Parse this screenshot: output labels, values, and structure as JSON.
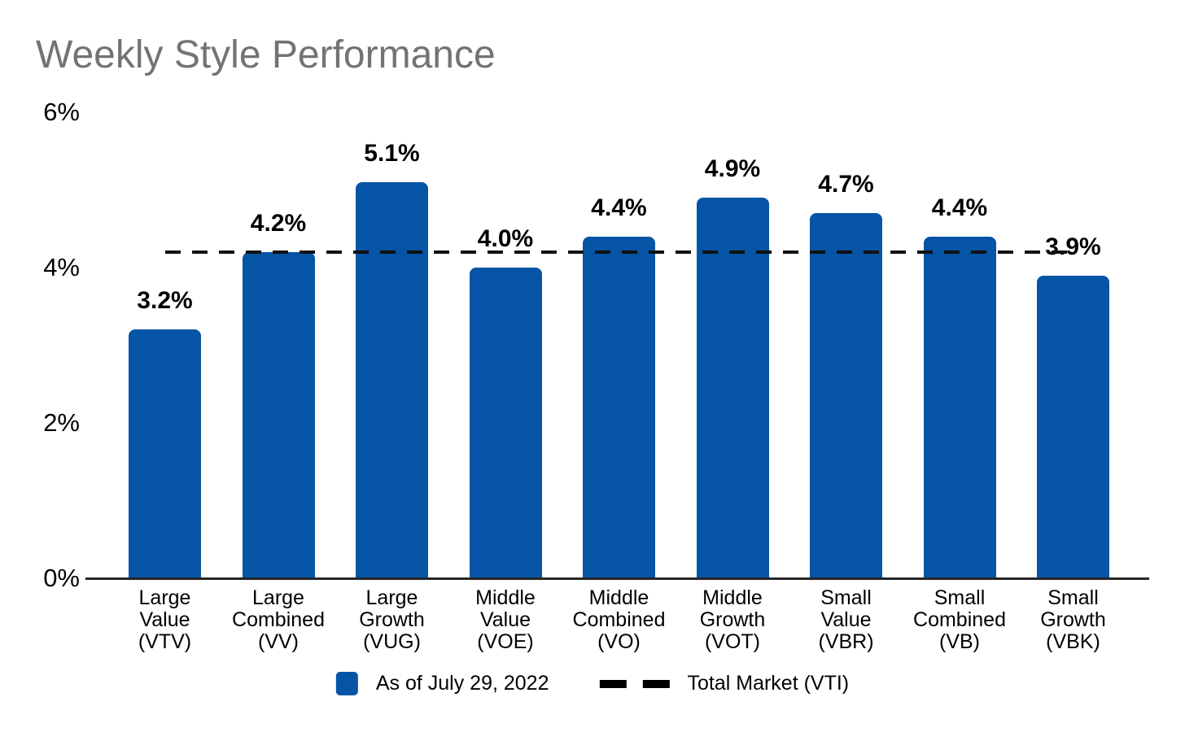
{
  "title": "Weekly Style Performance",
  "colors": {
    "bar": "#0554a5",
    "title_text": "#737373",
    "axis": "#262626",
    "reference_line": "#111111",
    "text": "#000000"
  },
  "chart_data": {
    "type": "bar",
    "title": "Weekly Style Performance",
    "categories": [
      [
        "Large",
        "Value",
        "(VTV)"
      ],
      [
        "Large",
        "Combined",
        "(VV)"
      ],
      [
        "Large",
        "Growth",
        "(VUG)"
      ],
      [
        "Middle",
        "Value",
        "(VOE)"
      ],
      [
        "Middle",
        "Combined",
        "(VO)"
      ],
      [
        "Middle",
        "Growth",
        "(VOT)"
      ],
      [
        "Small",
        "Value",
        "(VBR)"
      ],
      [
        "Small",
        "Combined",
        "(VB)"
      ],
      [
        "Small",
        "Growth",
        "(VBK)"
      ]
    ],
    "values": [
      3.2,
      4.2,
      5.1,
      4.0,
      4.4,
      4.9,
      4.7,
      4.4,
      3.9
    ],
    "bar_labels": [
      "3.2%",
      "4.2%",
      "5.1%",
      "4.0%",
      "4.4%",
      "4.9%",
      "4.7%",
      "4.4%",
      "3.9%"
    ],
    "xlabel": "",
    "ylabel": "",
    "ylim": [
      0,
      6
    ],
    "ytick_values": [
      0,
      2,
      4,
      6
    ],
    "ytick_labels": [
      "0%",
      "2%",
      "4%",
      "6%"
    ],
    "grid": false,
    "reference_line": {
      "value": 4.2,
      "label": "Total Market (VTI)",
      "style": "dashed"
    },
    "legend_position": "bottom-center",
    "legend": [
      {
        "marker": "bar-swatch",
        "label": "As of July 29, 2022"
      },
      {
        "marker": "dashed-line",
        "label": "Total Market (VTI)"
      }
    ]
  },
  "legend": {
    "series_label": "As of July 29, 2022",
    "reference_label": "Total Market (VTI)"
  }
}
